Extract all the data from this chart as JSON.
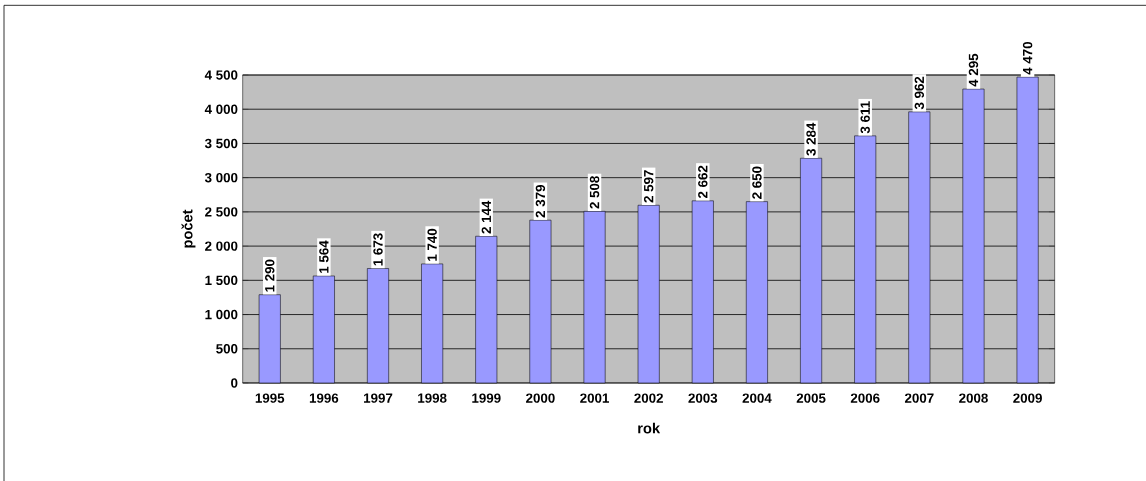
{
  "chart_data": {
    "type": "bar",
    "xlabel": "rok",
    "ylabel": "počet",
    "categories": [
      "1995",
      "1996",
      "1997",
      "1998",
      "1999",
      "2000",
      "2001",
      "2002",
      "2003",
      "2004",
      "2005",
      "2006",
      "2007",
      "2008",
      "2009"
    ],
    "values": [
      1290,
      1564,
      1673,
      1740,
      2144,
      2379,
      2508,
      2597,
      2662,
      2650,
      3284,
      3611,
      3962,
      4295,
      4470
    ],
    "value_labels": [
      "1 290",
      "1 564",
      "1 673",
      "1 740",
      "2 144",
      "2 379",
      "2 508",
      "2 597",
      "2 662",
      "2 650",
      "3 284",
      "3 611",
      "3 962",
      "4 295",
      "4 470"
    ],
    "color": "#9999ff",
    "ylim": [
      0,
      4500
    ],
    "yticks": [
      0,
      500,
      {
        "value": 1000,
        "label": "1 000"
      },
      {
        "value": 1500,
        "label": "1 500"
      },
      {
        "value": 2000,
        "label": "2 000"
      },
      {
        "value": 2500,
        "label": "2 500"
      },
      {
        "value": 3000,
        "label": "3 000"
      },
      {
        "value": 3500,
        "label": "3 500"
      },
      {
        "value": 4000,
        "label": "4 000"
      },
      {
        "value": 4500,
        "label": "4 500"
      }
    ],
    "grid": "y"
  }
}
